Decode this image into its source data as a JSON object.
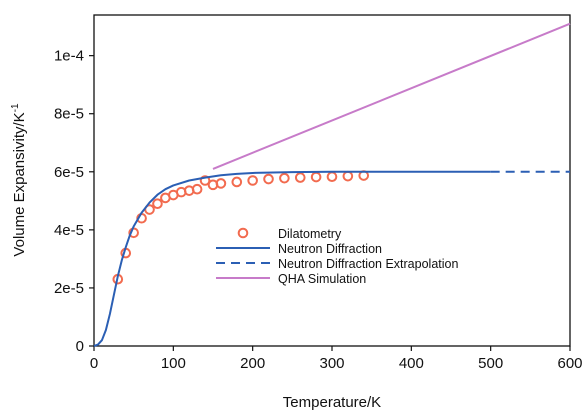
{
  "chart_data": {
    "type": "line",
    "title": "",
    "xlabel": "Temperature/K",
    "ylabel_main": "Volume Expansivity/K",
    "ylabel_sup": "-1",
    "xlim": [
      0,
      600
    ],
    "ylim": [
      0,
      0.000114
    ],
    "x_ticks": [
      0,
      100,
      200,
      300,
      400,
      500,
      600
    ],
    "x_tick_labels": [
      "0",
      "100",
      "200",
      "300",
      "400",
      "500",
      "600"
    ],
    "y_ticks": [
      0,
      2e-05,
      4e-05,
      6e-05,
      8e-05,
      0.0001
    ],
    "y_tick_labels": [
      "0",
      "2e-5",
      "4e-5",
      "6e-5",
      "8e-5",
      "1e-4"
    ],
    "grid": false,
    "legend_position": "lower-center",
    "series": [
      {
        "name": "Dilatometry",
        "style": "markers",
        "color": "#f26b4f",
        "x": [
          30,
          40,
          50,
          60,
          70,
          80,
          90,
          100,
          110,
          120,
          130,
          140,
          150,
          160,
          180,
          200,
          220,
          240,
          260,
          280,
          300,
          320,
          340
        ],
        "y": [
          2.3e-05,
          3.2e-05,
          3.9e-05,
          4.4e-05,
          4.7e-05,
          4.9e-05,
          5.1e-05,
          5.2e-05,
          5.3e-05,
          5.35e-05,
          5.4e-05,
          5.7e-05,
          5.55e-05,
          5.6e-05,
          5.65e-05,
          5.7e-05,
          5.75e-05,
          5.78e-05,
          5.8e-05,
          5.82e-05,
          5.83e-05,
          5.85e-05,
          5.87e-05
        ]
      },
      {
        "name": "Neutron Diffraction",
        "style": "solid",
        "color": "#2b5fb4",
        "x": [
          0,
          5,
          10,
          15,
          20,
          25,
          30,
          35,
          40,
          45,
          50,
          60,
          70,
          80,
          90,
          100,
          120,
          140,
          160,
          180,
          200,
          250,
          300,
          350,
          400,
          450,
          500
        ],
        "y": [
          0,
          5e-07,
          2e-06,
          5.5e-06,
          1.1e-05,
          1.75e-05,
          2.4e-05,
          2.95e-05,
          3.4e-05,
          3.8e-05,
          4.12e-05,
          4.59e-05,
          4.94e-05,
          5.21e-05,
          5.4e-05,
          5.53e-05,
          5.7e-05,
          5.8e-05,
          5.88e-05,
          5.93e-05,
          5.96e-05,
          5.99e-05,
          6e-05,
          6e-05,
          6e-05,
          6e-05,
          6e-05
        ]
      },
      {
        "name": "Neutron Diffraction Extrapolation",
        "style": "dashed",
        "color": "#2b5fb4",
        "x": [
          500,
          600
        ],
        "y": [
          6e-05,
          6e-05
        ]
      },
      {
        "name": "QHA Simulation",
        "style": "solid",
        "color": "#c77bc9",
        "x": [
          150,
          600
        ],
        "y": [
          6.1e-05,
          0.000111
        ]
      }
    ]
  }
}
